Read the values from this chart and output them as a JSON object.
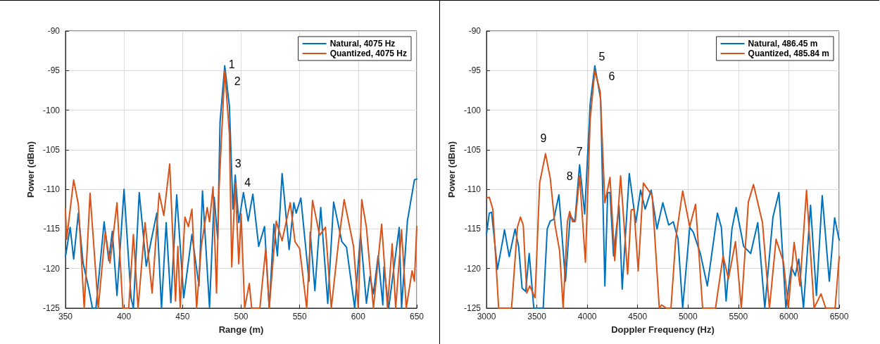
{
  "chart_data": [
    {
      "type": "line",
      "xlabel": "Range (m)",
      "ylabel": "Power (dBm)",
      "xlim": [
        350,
        650
      ],
      "ylim": [
        -125,
        -90
      ],
      "xticks": [
        350,
        400,
        450,
        500,
        550,
        600,
        650
      ],
      "yticks": [
        -125,
        -120,
        -115,
        -110,
        -105,
        -100,
        -95,
        -90
      ],
      "grid": true,
      "legend": "top right",
      "marker": "none",
      "line_style": "solid",
      "series": [
        {
          "name": "Natural, 4075 Hz",
          "color": "#0072bd",
          "x": [
            350,
            354,
            357,
            361,
            365,
            370,
            373,
            376,
            383,
            387,
            390,
            394,
            400,
            406,
            408,
            413,
            419,
            423,
            428,
            432,
            436,
            440,
            445,
            451,
            458,
            464,
            467,
            473,
            477,
            480,
            482,
            486,
            490,
            493,
            495,
            498,
            502,
            506,
            510,
            515,
            520,
            524,
            528,
            531,
            535,
            541,
            545,
            547,
            551,
            558,
            559,
            563,
            568,
            574,
            579,
            586,
            590,
            597,
            602,
            607,
            610,
            613,
            617,
            621,
            622,
            626,
            635,
            637,
            642,
            648,
            650
          ],
          "values": [
            -118.5,
            -114.8,
            -118.8,
            -113,
            -119.3,
            -122.6,
            -125,
            -125,
            -114.1,
            -119,
            -115.3,
            -123.4,
            -110,
            -123.7,
            -125,
            -110.4,
            -119.7,
            -116.6,
            -113,
            -125,
            -114.2,
            -124.3,
            -110.7,
            -123.7,
            -115.7,
            -122.2,
            -110.2,
            -124.9,
            -111,
            -116.3,
            -101.5,
            -94.4,
            -99.5,
            -112.5,
            -108.2,
            -114.2,
            -110.4,
            -114,
            -110.6,
            -117.2,
            -114.7,
            -125,
            -114.4,
            -118.4,
            -108,
            -117.6,
            -111.7,
            -113,
            -111.1,
            -121.6,
            -115.4,
            -122.8,
            -112.3,
            -124.4,
            -111.6,
            -116.6,
            -117.3,
            -125,
            -115.7,
            -124.4,
            -121,
            -123.2,
            -118.4,
            -124.6,
            -119.8,
            -125,
            -114.8,
            -125,
            -114,
            -108.8,
            -108.7
          ]
        },
        {
          "name": "Quantized, 4075 Hz",
          "color": "#d95319",
          "x": [
            350,
            351,
            357,
            361,
            366,
            371,
            378,
            384,
            388,
            394,
            399,
            404,
            408,
            412,
            418,
            424,
            430,
            434,
            439,
            444,
            446,
            448,
            452,
            455,
            458,
            462,
            466,
            471,
            473,
            476,
            479,
            481,
            486,
            490,
            492,
            495,
            498,
            500,
            503,
            507,
            509,
            516,
            521,
            524,
            530,
            535,
            542,
            546,
            550,
            556,
            561,
            567,
            572,
            577,
            583,
            588,
            596,
            600,
            603,
            607,
            613,
            620,
            625,
            629,
            632,
            637,
            641,
            646,
            648,
            650
          ],
          "values": [
            -112.5,
            -116.3,
            -108.8,
            -111.9,
            -125,
            -110.5,
            -125,
            -115.4,
            -119.3,
            -111.7,
            -125,
            -125,
            -115.7,
            -125,
            -114.2,
            -123.1,
            -110.5,
            -113.3,
            -106.8,
            -124.1,
            -117.2,
            -125,
            -113.5,
            -114.7,
            -112.5,
            -125,
            -117.2,
            -112.3,
            -114.1,
            -109.7,
            -123.1,
            -110.4,
            -95,
            -103,
            -119.8,
            -109.2,
            -119.4,
            -113.1,
            -125,
            -121.9,
            -125,
            -125,
            -117.5,
            -125,
            -114,
            -116.5,
            -111.7,
            -116.6,
            -117.5,
            -125,
            -111.4,
            -115.8,
            -114.8,
            -125,
            -116.9,
            -111.3,
            -117.2,
            -125,
            -111.3,
            -114.8,
            -125,
            -114.4,
            -125,
            -116.9,
            -125,
            -115.1,
            -125,
            -120.3,
            -121.6,
            -114.7
          ]
        }
      ],
      "annotations": [
        {
          "text": "1",
          "x": 486,
          "y": -94.4
        },
        {
          "text": "2",
          "x": 486,
          "y": -95
        },
        {
          "text": "3",
          "x": 495,
          "y": -108.2
        },
        {
          "text": "4",
          "x": 502,
          "y": -110.4
        }
      ]
    },
    {
      "type": "line",
      "xlabel": "Doppler Frequency (Hz)",
      "ylabel": "Power (dBm)",
      "xlim": [
        3000,
        6500
      ],
      "ylim": [
        -125,
        -90
      ],
      "xticks": [
        3000,
        3500,
        4000,
        4500,
        5000,
        5500,
        6000,
        6500
      ],
      "yticks": [
        -125,
        -120,
        -115,
        -110,
        -105,
        -100,
        -95,
        -90
      ],
      "grid": true,
      "legend": "top right",
      "marker": "none",
      "line_style": "solid",
      "series": [
        {
          "name": "Natural, 486.45 m",
          "color": "#0072bd",
          "x": [
            3000,
            3028,
            3051,
            3109,
            3168,
            3179,
            3226,
            3284,
            3319,
            3354,
            3389,
            3424,
            3470,
            3563,
            3603,
            3633,
            3668,
            3719,
            3784,
            3831,
            3877,
            3924,
            3975,
            4029,
            4075,
            4133,
            4175,
            4203,
            4226,
            4261,
            4315,
            4347,
            4417,
            4482,
            4529,
            4575,
            4634,
            4692,
            4750,
            4808,
            4854,
            4901,
            4947,
            5017,
            5052,
            5122,
            5192,
            5292,
            5331,
            5378,
            5436,
            5478,
            5552,
            5622,
            5692,
            5762,
            5843,
            5902,
            5971,
            6025,
            6064,
            6099,
            6146,
            6216,
            6274,
            6332,
            6402,
            6455,
            6500
          ],
          "values": [
            -115.7,
            -113,
            -112.9,
            -120.1,
            -116,
            -115.1,
            -118.5,
            -115,
            -117.2,
            -122.5,
            -122.9,
            -118.1,
            -125,
            -125,
            -115,
            -114,
            -113.8,
            -110.7,
            -121.6,
            -113.3,
            -114.1,
            -106.9,
            -113.1,
            -99.2,
            -94.4,
            -98.6,
            -122.2,
            -110.4,
            -110.4,
            -118.4,
            -112,
            -122.6,
            -108,
            -114.2,
            -110.1,
            -112.5,
            -110.1,
            -115,
            -111.7,
            -114.5,
            -114.1,
            -116.3,
            -125,
            -114.8,
            -115.4,
            -118.1,
            -122.2,
            -113,
            -114.8,
            -124.1,
            -115,
            -112.3,
            -117.2,
            -118.1,
            -114.2,
            -125,
            -113.5,
            -110.4,
            -125,
            -119.8,
            -120.9,
            -118.8,
            -125,
            -112,
            -123.4,
            -110.8,
            -121.6,
            -113.6,
            -116.4
          ]
        },
        {
          "name": "Quantized, 485.84 m",
          "color": "#d95319",
          "x": [
            3000,
            3028,
            3063,
            3121,
            3249,
            3307,
            3337,
            3365,
            3400,
            3430,
            3482,
            3528,
            3586,
            3633,
            3679,
            3726,
            3761,
            3803,
            3826,
            3854,
            3882,
            3924,
            3982,
            4029,
            4075,
            4129,
            4175,
            4226,
            4273,
            4331,
            4401,
            4436,
            4464,
            4506,
            4557,
            4645,
            4715,
            4738,
            4785,
            4831,
            4878,
            4947,
            5017,
            5075,
            5145,
            5273,
            5348,
            5401,
            5471,
            5529,
            5599,
            5650,
            5739,
            5808,
            5874,
            5948,
            5995,
            6053,
            6111,
            6176,
            6251,
            6320,
            6367,
            6460,
            6500
          ],
          "values": [
            -111.1,
            -111,
            -112.5,
            -125,
            -125,
            -114.8,
            -113.5,
            -114.5,
            -123.1,
            -122.2,
            -123.7,
            -109.2,
            -105.5,
            -108.6,
            -114.4,
            -117.8,
            -125,
            -114.1,
            -112.8,
            -114.1,
            -114,
            -108.3,
            -119.2,
            -101.2,
            -95,
            -97.7,
            -111.7,
            -108.5,
            -119,
            -108.3,
            -120.7,
            -112.6,
            -112.5,
            -120.3,
            -109.2,
            -110.8,
            -125,
            -124.6,
            -125,
            -125,
            -116.3,
            -110.2,
            -114.7,
            -111.9,
            -125,
            -125,
            -118.4,
            -121.3,
            -116.6,
            -125,
            -111.6,
            -109.4,
            -114.2,
            -125,
            -116.3,
            -119.2,
            -125,
            -116.7,
            -122.2,
            -110.1,
            -125,
            -123.2,
            -125,
            -125,
            -118.5
          ]
        }
      ],
      "annotations": [
        {
          "text": "5",
          "x": 4075,
          "y": -94.4
        },
        {
          "text": "6",
          "x": 4075,
          "y": -95
        },
        {
          "text": "7",
          "x": 3924,
          "y": -106.9
        },
        {
          "text": "8",
          "x": 3924,
          "y": -108.3
        },
        {
          "text": "9",
          "x": 3586,
          "y": -105.5
        }
      ]
    }
  ]
}
